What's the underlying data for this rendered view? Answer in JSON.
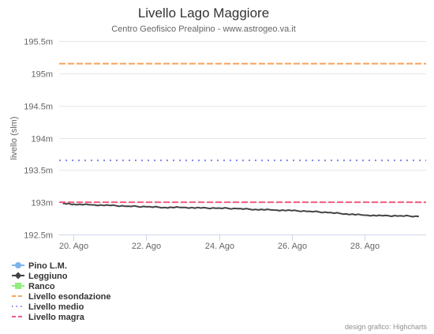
{
  "chart_data": {
    "type": "line",
    "title": "Livello Lago Maggiore",
    "subtitle": "Centro Geofisico Prealpino - www.astrogeo.va.it",
    "ylabel": "livello (slm)",
    "ylim": [
      192.5,
      195.5
    ],
    "xlim": [
      19.6,
      29.7
    ],
    "y_ticks": [
      192.5,
      193,
      193.5,
      194,
      194.5,
      195,
      195.5
    ],
    "y_tick_labels": [
      "192.5m",
      "193m",
      "193.5m",
      "194m",
      "194.5m",
      "195m",
      "195.5m"
    ],
    "x_ticks": [
      20,
      22,
      24,
      26,
      28
    ],
    "x_tick_labels": [
      "20. Ago",
      "22. Ago",
      "24. Ago",
      "26. Ago",
      "28. Ago"
    ],
    "grid": true,
    "legend_position": "bottom-left",
    "series": [
      {
        "name": "Pino L.M.",
        "color": "#7cb5ec",
        "marker": "circle",
        "x": [],
        "y": []
      },
      {
        "name": "Leggiuno",
        "color": "#434348",
        "marker": "diamond",
        "x": [
          19.7,
          20.0,
          20.5,
          21.0,
          21.5,
          22.0,
          22.5,
          23.0,
          23.5,
          24.0,
          24.5,
          25.0,
          25.5,
          26.0,
          26.5,
          27.0,
          27.5,
          28.0,
          28.5,
          29.0,
          29.5
        ],
        "y": [
          192.98,
          192.97,
          192.96,
          192.95,
          192.94,
          192.93,
          192.92,
          192.92,
          192.91,
          192.91,
          192.9,
          192.89,
          192.88,
          192.87,
          192.86,
          192.84,
          192.82,
          192.8,
          192.79,
          192.79,
          192.78
        ]
      },
      {
        "name": "Ranco",
        "color": "#90ed7d",
        "marker": "square",
        "x": [],
        "y": []
      },
      {
        "name": "Livello esondazione",
        "color": "#f7a35c",
        "dash": "dashed",
        "constant": 195.15
      },
      {
        "name": "Livello medio",
        "color": "#8085e9",
        "dash": "dotted",
        "constant": 193.65
      },
      {
        "name": "Livello magra",
        "color": "#f15c80",
        "dash": "dashed",
        "constant": 193.0
      }
    ],
    "credits": "design grafico: Highcharts"
  }
}
